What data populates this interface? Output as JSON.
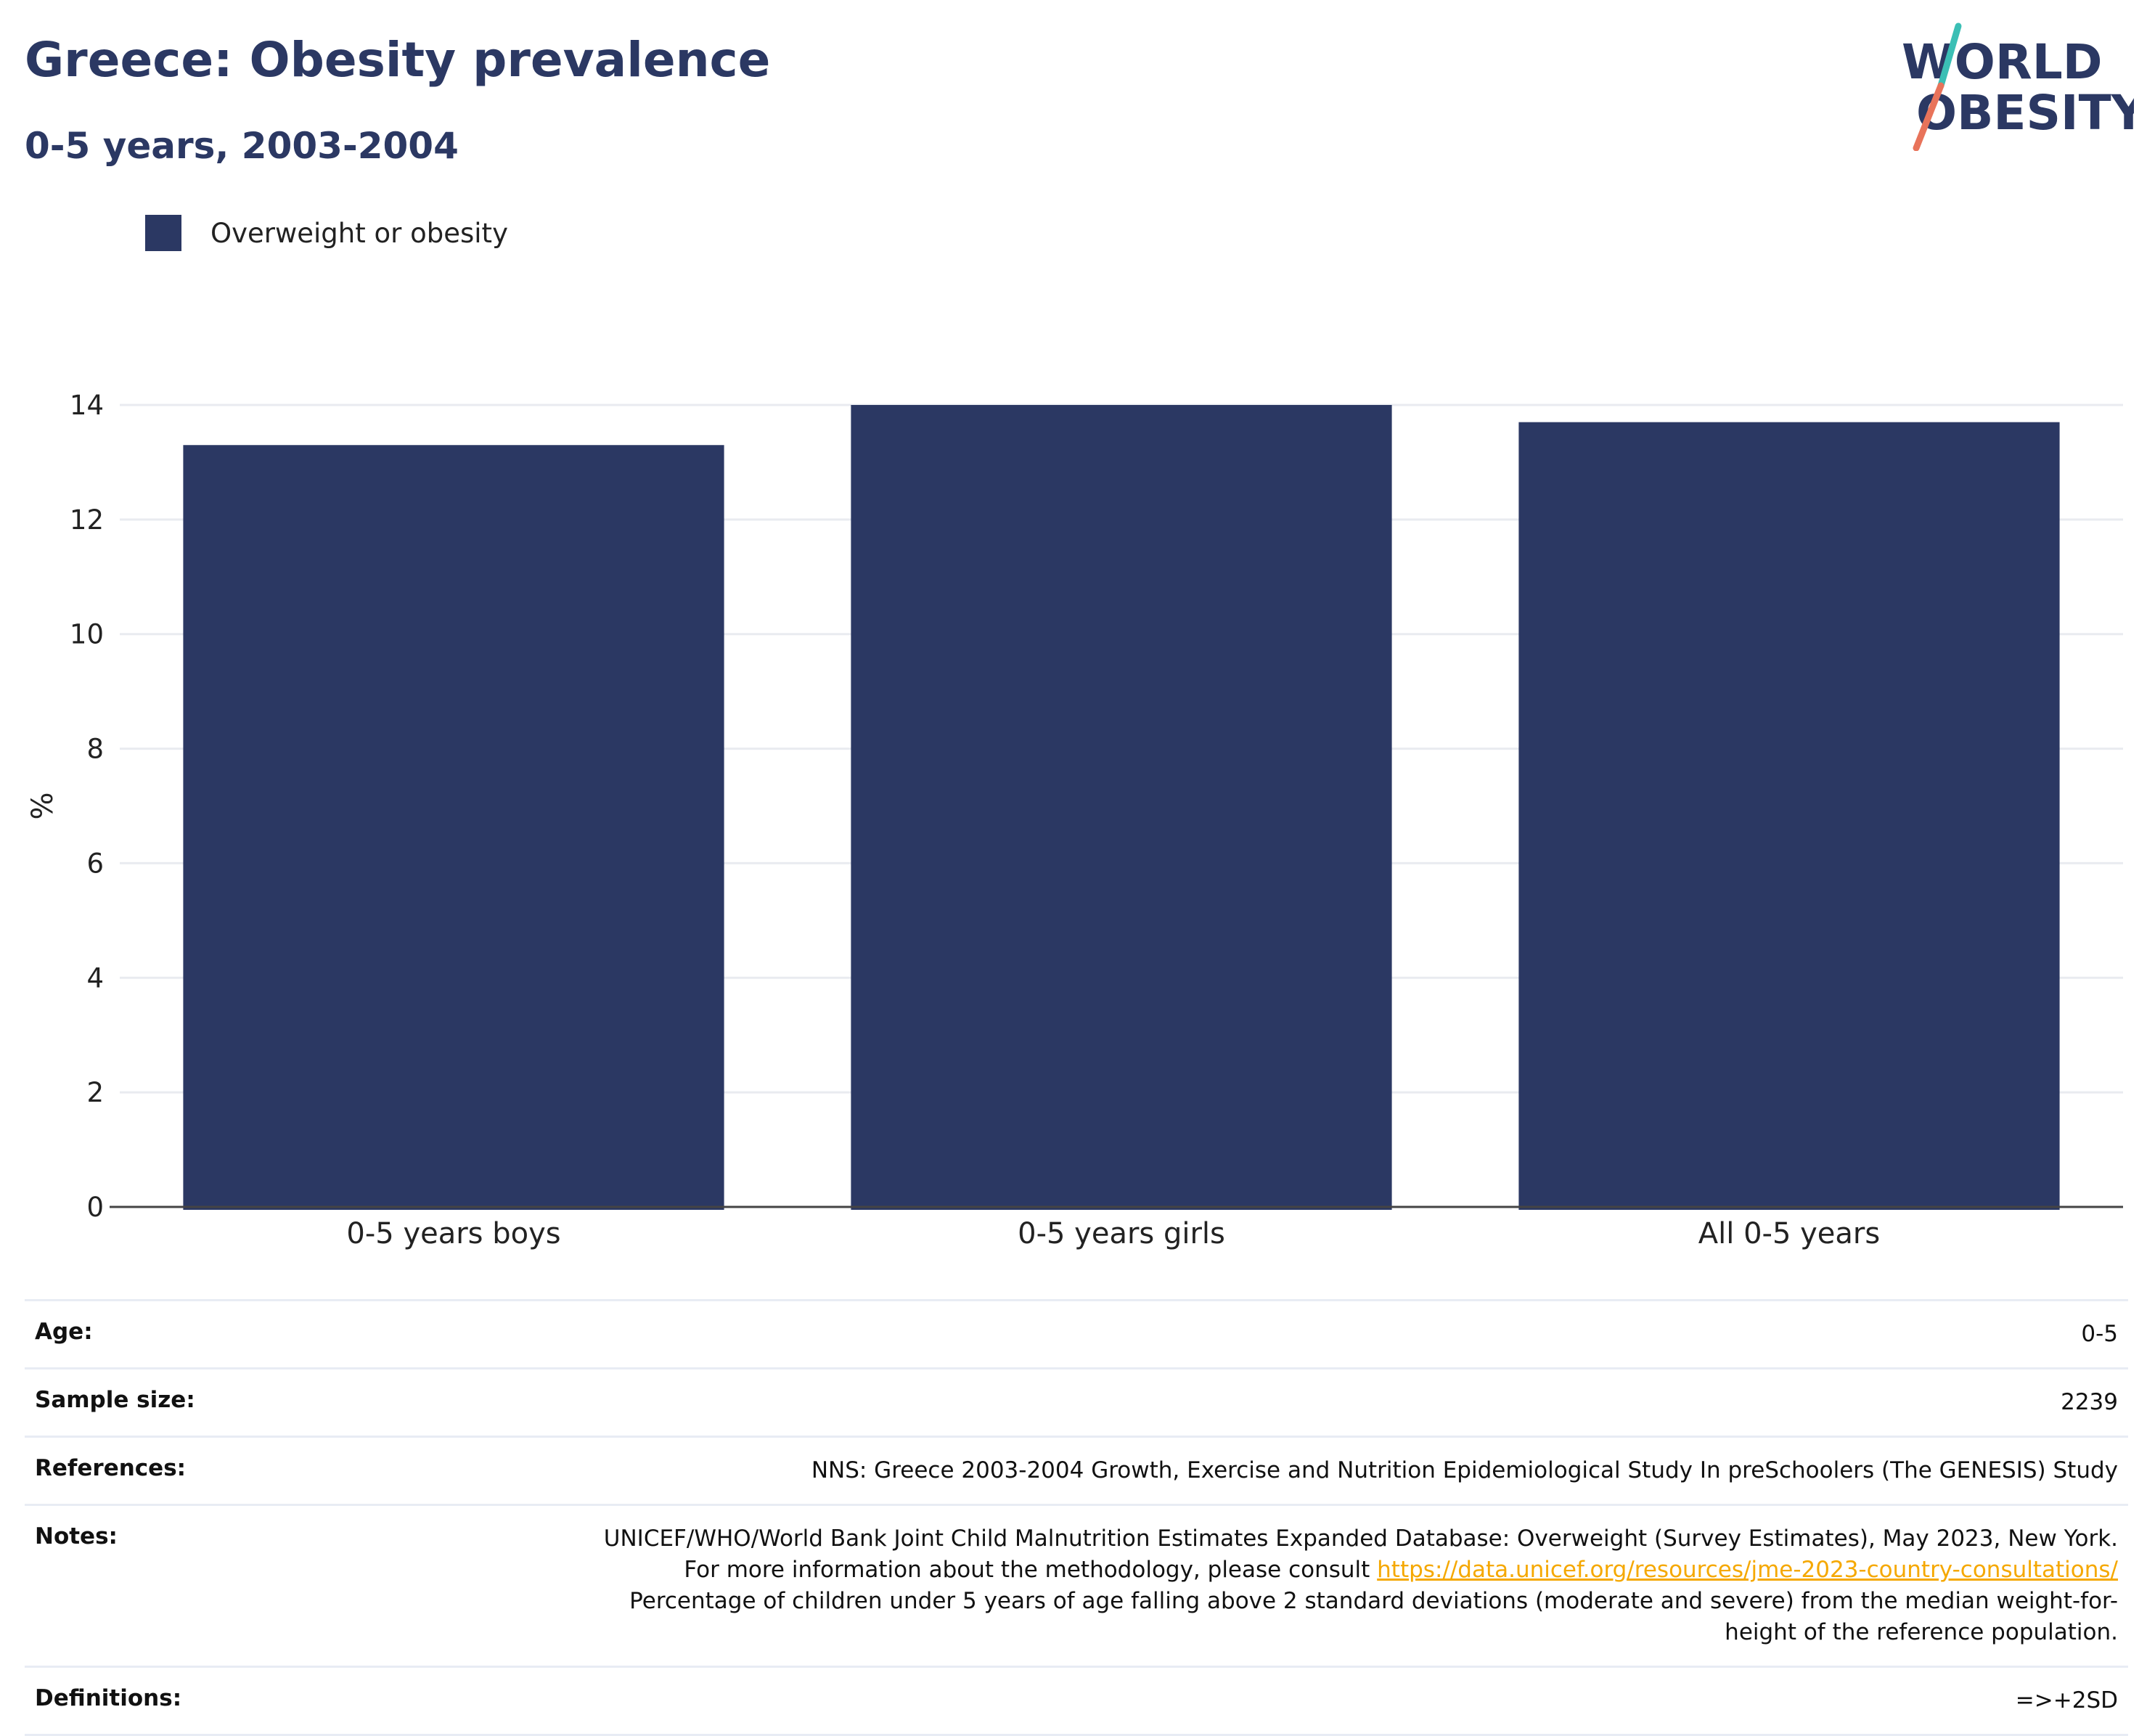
{
  "header": {
    "title": "Greece: Obesity prevalence",
    "subtitle": "0-5 years, 2003-2004",
    "logo_line1": "WORLD",
    "logo_line2": "OBESITY"
  },
  "legend": {
    "label": "Overweight or obesity",
    "color": "#2b3863"
  },
  "chart_data": {
    "type": "bar",
    "categories": [
      "0-5 years boys",
      "0-5 years girls",
      "All 0-5 years"
    ],
    "series": [
      {
        "name": "Overweight or obesity",
        "values": [
          13.3,
          14.0,
          13.7
        ],
        "color": "#2b3863"
      }
    ],
    "ylabel": "%",
    "xlabel": "",
    "ylim": [
      0,
      14
    ],
    "yticks": [
      0,
      2,
      4,
      6,
      8,
      10,
      12,
      14
    ],
    "grid": true,
    "legend_position": "top-left"
  },
  "info": {
    "age": {
      "key": "Age:",
      "value": "0-5"
    },
    "sample_size": {
      "key": "Sample size:",
      "value": "2239"
    },
    "references": {
      "key": "References:",
      "value": "NNS: Greece 2003-2004 Growth, Exercise and Nutrition Epidemiological Study In preSchoolers (The GENESIS) Study"
    },
    "notes": {
      "key": "Notes:",
      "text_before": "UNICEF/WHO/World Bank Joint Child Malnutrition Estimates Expanded Database: Overweight (Survey Estimates), May 2023, New York. For more information about the methodology, please consult ",
      "link": "https://data.unicef.org/resources/jme-2023-country-consultations/",
      "text_after": "Percentage of children under 5 years of age falling above 2 standard deviations (moderate and severe) from the median weight-for-height of the reference population."
    },
    "definitions": {
      "key": "Definitions:",
      "value": "=>+2SD"
    }
  },
  "colors": {
    "title": "#2b3863",
    "bar": "#2b3863",
    "link": "#f5a800",
    "logo_teal": "#3bbfb5",
    "logo_red": "#e8735a"
  }
}
